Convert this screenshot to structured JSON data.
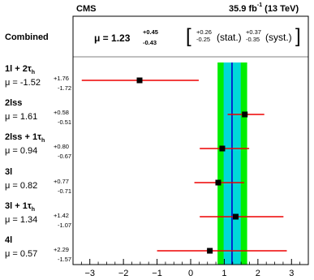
{
  "header": {
    "experiment": "CMS",
    "lumi": "35.9 fb",
    "lumi_exp": "-1",
    "energy": "(13 TeV)"
  },
  "combined": {
    "label": "Combined",
    "mu_text": "μ = 1.23",
    "up": "+0.45",
    "down": "-0.43",
    "stat_up": "+0.26",
    "stat_down": "-0.25",
    "stat_label": "(stat.)",
    "syst_up": "+0.37",
    "syst_down": "-0.35",
    "syst_label": "(syst.)"
  },
  "categories": [
    {
      "name_main": "1l + 2τ",
      "name_sub": "h",
      "mu_text": "μ = -1.52",
      "up": "+1.76",
      "down": "-1.72"
    },
    {
      "name_main": "2lss",
      "name_sub": "",
      "mu_text": "μ = 1.61",
      "up": "+0.58",
      "down": "-0.51"
    },
    {
      "name_main": "2lss + 1τ",
      "name_sub": "h",
      "mu_text": "μ = 0.94",
      "up": "+0.80",
      "down": "-0.67"
    },
    {
      "name_main": "3l",
      "name_sub": "",
      "mu_text": "μ = 0.82",
      "up": "+0.77",
      "down": "-0.71"
    },
    {
      "name_main": "3l + 1τ",
      "name_sub": "h",
      "mu_text": "μ = 1.34",
      "up": "+1.42",
      "down": "-1.07"
    },
    {
      "name_main": "4l",
      "name_sub": "",
      "mu_text": "μ = 0.57",
      "up": "+2.29",
      "down": "-1.57"
    }
  ],
  "colors": {
    "band_total": "#00ee00",
    "band_stat": "#00d8d8",
    "central_line": "#0000cc",
    "error_bar": "#ee0000",
    "marker": "#000000"
  },
  "chart_data": {
    "type": "scatter",
    "xlim": [
      -3.5,
      3.5
    ],
    "x_ticks": [
      -3,
      -2,
      -1,
      0,
      1,
      2,
      3
    ],
    "x_tick_labels": [
      "−3",
      "−2",
      "−1",
      "0",
      "1",
      "2",
      "3"
    ],
    "combined": {
      "value": 1.23,
      "up": 0.45,
      "down": 0.43,
      "stat_up": 0.26,
      "stat_down": 0.25
    },
    "points": [
      {
        "category": "1l + 2τh",
        "value": -1.52,
        "up": 1.76,
        "down": 1.72
      },
      {
        "category": "2lss",
        "value": 1.61,
        "up": 0.58,
        "down": 0.51
      },
      {
        "category": "2lss + 1τh",
        "value": 0.94,
        "up": 0.8,
        "down": 0.67
      },
      {
        "category": "3l",
        "value": 0.82,
        "up": 0.77,
        "down": 0.71
      },
      {
        "category": "3l + 1τh",
        "value": 1.34,
        "up": 1.42,
        "down": 1.07
      },
      {
        "category": "4l",
        "value": 0.57,
        "up": 2.29,
        "down": 1.57
      }
    ]
  }
}
